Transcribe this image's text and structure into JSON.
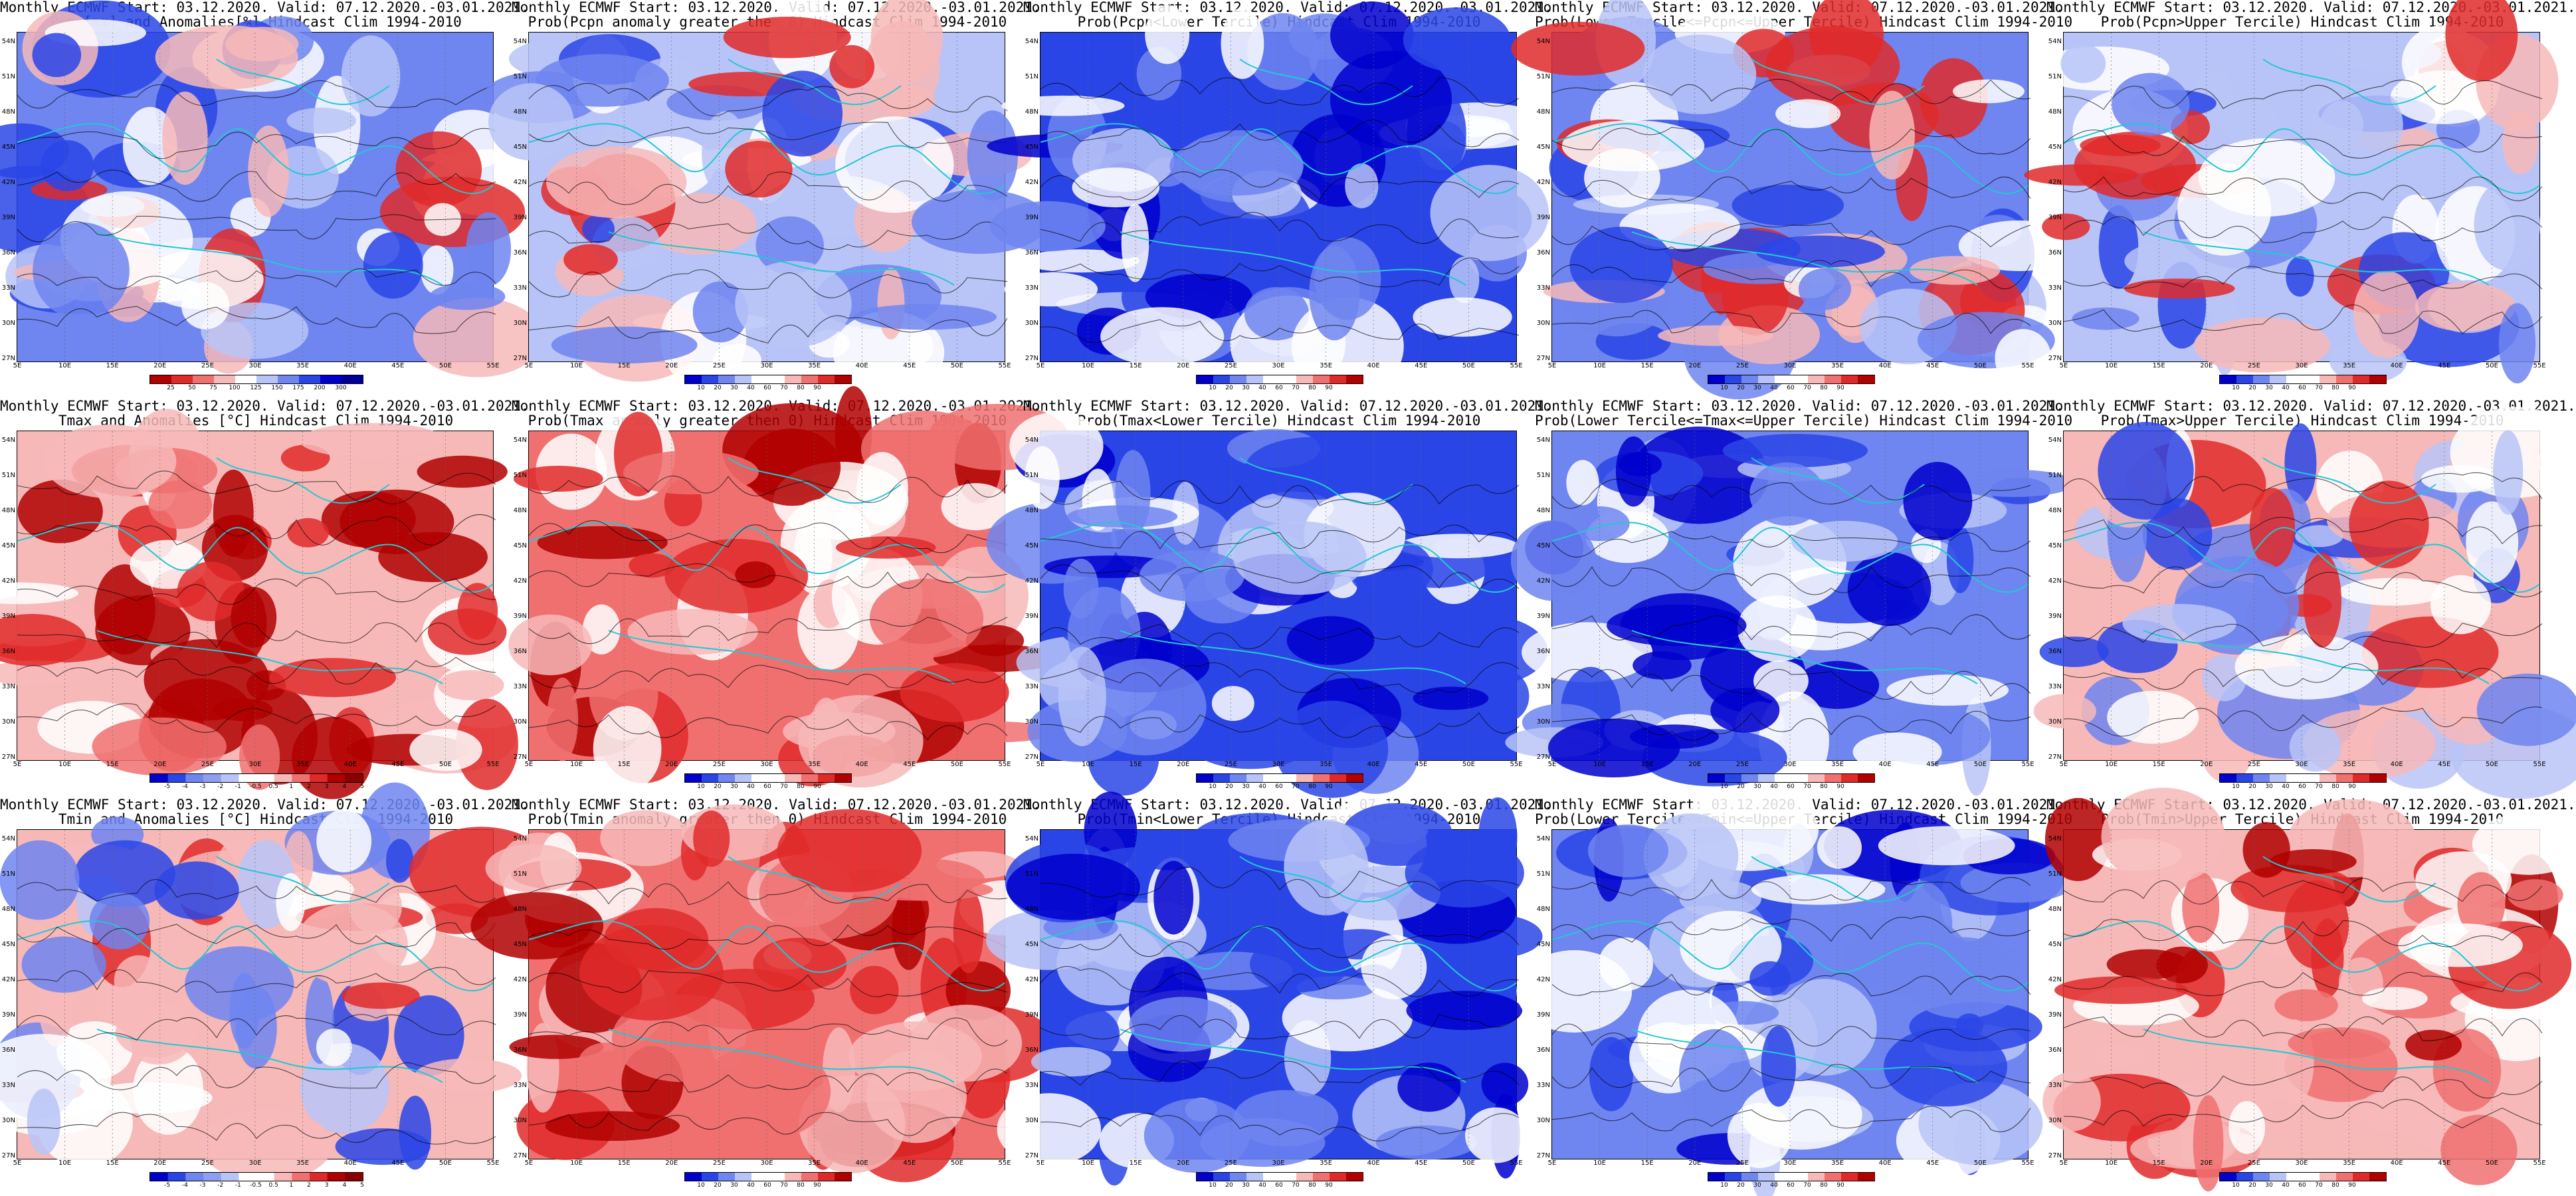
{
  "panels": [
    {
      "line1": "Monthly ECMWF Start: 03.12.2020. Valid: 07.12.2020.-03.01.2021.",
      "line2": "Pcpn[mm] and Anomalies[%] Hindcast Clim 1994-2010",
      "scale": "anom",
      "cbar_labels": [
        "25",
        "50",
        "75",
        "100",
        "125",
        "150",
        "175",
        "200",
        "300"
      ]
    },
    {
      "line1": "Monthly ECMWF Start: 03.12.2020. Valid: 07.12.2020.-03.01.2021.",
      "line2": "Prob(Pcpn anomaly greater then 0) Hindcast Clim 1994-2010",
      "scale": "prob",
      "cbar_labels": [
        "10",
        "20",
        "30",
        "40",
        "60",
        "70",
        "80",
        "90"
      ]
    },
    {
      "line1": "Monthly ECMWF Start: 03.12.2020. Valid: 07.12.2020.-03.01.2021.",
      "line2": "Prob(Pcpn<Lower Tercile) Hindcast Clim 1994-2010",
      "scale": "prob",
      "cbar_labels": [
        "10",
        "20",
        "30",
        "40",
        "60",
        "70",
        "80",
        "90"
      ]
    },
    {
      "line1": "Monthly ECMWF Start: 03.12.2020. Valid: 07.12.2020.-03.01.2021.",
      "line2": "Prob(Lower Tercile<=Pcpn<=Upper Tercile) Hindcast Clim 1994-2010",
      "scale": "prob",
      "cbar_labels": [
        "10",
        "20",
        "30",
        "40",
        "60",
        "70",
        "80",
        "90"
      ]
    },
    {
      "line1": "Monthly ECMWF Start: 03.12.2020. Valid: 07.12.2020.-03.01.2021.",
      "line2": "Prob(Pcpn>Upper Tercile) Hindcast Clim 1994-2010",
      "scale": "prob",
      "cbar_labels": [
        "10",
        "20",
        "30",
        "40",
        "60",
        "70",
        "80",
        "90"
      ]
    },
    {
      "line1": "Monthly ECMWF Start: 03.12.2020. Valid: 07.12.2020.-03.01.2021.",
      "line2": "Tmax and Anomalies [°C] Hindcast Clim 1994-2010",
      "scale": "temp",
      "cbar_labels": [
        "-5",
        "-4",
        "-3",
        "-2",
        "-1",
        "-0.5",
        "0.5",
        "1",
        "2",
        "3",
        "4",
        "5"
      ]
    },
    {
      "line1": "Monthly ECMWF Start: 03.12.2020. Valid: 07.12.2020.-03.01.2021.",
      "line2": "Prob(Tmax anomaly greater then 0) Hindcast Clim 1994-2010",
      "scale": "prob",
      "cbar_labels": [
        "10",
        "20",
        "30",
        "40",
        "60",
        "70",
        "80",
        "90"
      ]
    },
    {
      "line1": "Monthly ECMWF Start: 03.12.2020. Valid: 07.12.2020.-03.01.2021.",
      "line2": "Prob(Tmax<Lower Tercile) Hindcast Clim 1994-2010",
      "scale": "prob",
      "cbar_labels": [
        "10",
        "20",
        "30",
        "40",
        "60",
        "70",
        "80",
        "90"
      ]
    },
    {
      "line1": "Monthly ECMWF Start: 03.12.2020. Valid: 07.12.2020.-03.01.2021.",
      "line2": "Prob(Lower Tercile<=Tmax<=Upper Tercile) Hindcast Clim 1994-2010",
      "scale": "prob",
      "cbar_labels": [
        "10",
        "20",
        "30",
        "40",
        "60",
        "70",
        "80",
        "90"
      ]
    },
    {
      "line1": "Monthly ECMWF Start: 03.12.2020. Valid: 07.12.2020.-03.01.2021.",
      "line2": "Prob(Tmax>Upper Tercile) Hindcast Clim 1994-2010",
      "scale": "prob",
      "cbar_labels": [
        "10",
        "20",
        "30",
        "40",
        "60",
        "70",
        "80",
        "90"
      ]
    },
    {
      "line1": "Monthly ECMWF Start: 03.12.2020. Valid: 07.12.2020.-03.01.2021.",
      "line2": "Tmin and Anomalies [°C] Hindcast Clim 1994-2010",
      "scale": "temp",
      "cbar_labels": [
        "-5",
        "-4",
        "-3",
        "-2",
        "-1",
        "-0.5",
        "0.5",
        "1",
        "2",
        "3",
        "4",
        "5"
      ]
    },
    {
      "line1": "Monthly ECMWF Start: 03.12.2020. Valid: 07.12.2020.-03.01.2021.",
      "line2": "Prob(Tmin anomaly greater then 0) Hindcast Clim 1994-2010",
      "scale": "prob",
      "cbar_labels": [
        "10",
        "20",
        "30",
        "40",
        "60",
        "70",
        "80",
        "90"
      ]
    },
    {
      "line1": "Monthly ECMWF Start: 03.12.2020. Valid: 07.12.2020.-03.01.2021.",
      "line2": "Prob(Tmin<Lower Tercile) Hindcast Clim 1994-2010",
      "scale": "prob",
      "cbar_labels": [
        "10",
        "20",
        "30",
        "40",
        "60",
        "70",
        "80",
        "90"
      ]
    },
    {
      "line1": "Monthly ECMWF Start: 03.12.2020. Valid: 07.12.2020.-03.01.2021.",
      "line2": "Prob(Lower Tercile<=Tmin<=Upper Tercile) Hindcast Clim 1994-2010",
      "scale": "prob",
      "cbar_labels": [
        "10",
        "20",
        "30",
        "40",
        "60",
        "70",
        "80",
        "90"
      ]
    },
    {
      "line1": "Monthly ECMWF Start: 03.12.2020. Valid: 07.12.2020.-03.01.2021.",
      "line2": "Prob(Tmin>Upper Tercile) Hindcast Clim 1994-2010",
      "scale": "prob",
      "cbar_labels": [
        "10",
        "20",
        "30",
        "40",
        "60",
        "70",
        "80",
        "90"
      ]
    }
  ],
  "lat_labels": [
    "54N",
    "51N",
    "48N",
    "45N",
    "42N",
    "39N",
    "36N",
    "33N",
    "30N",
    "27N"
  ],
  "lon_labels": [
    "5E",
    "10E",
    "15E",
    "20E",
    "25E",
    "30E",
    "35E",
    "40E",
    "45E",
    "50E",
    "55E"
  ],
  "colors": {
    "deep_blue": "#0000cc",
    "blue": "#2a45e6",
    "mid_blue": "#6f85f0",
    "light_blue": "#b8c4f7",
    "white": "#ffffff",
    "light_red": "#f7b8b8",
    "mid_red": "#f07070",
    "red": "#e02a2a",
    "deep_red": "#b00000",
    "coast": "#22c8d4",
    "contour": "#000000"
  }
}
